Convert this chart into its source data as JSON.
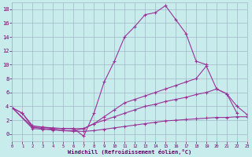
{
  "background_color": "#c8ecec",
  "line_color": "#993399",
  "grid_color": "#a0b8c8",
  "xlabel": "Windchill (Refroidissement éolien,°C)",
  "xlabel_color": "#660066",
  "tick_color": "#660066",
  "xlim": [
    0,
    23
  ],
  "ylim": [
    -1,
    19
  ],
  "xticks": [
    0,
    1,
    2,
    3,
    4,
    5,
    6,
    7,
    8,
    9,
    10,
    11,
    12,
    13,
    14,
    15,
    16,
    17,
    18,
    19,
    20,
    21,
    22,
    23
  ],
  "yticks": [
    0,
    2,
    4,
    6,
    8,
    10,
    12,
    14,
    16,
    18
  ],
  "curves": [
    {
      "x": [
        0,
        1,
        2,
        3,
        4,
        5,
        6,
        7,
        8,
        9,
        10,
        11,
        12,
        13,
        14,
        15,
        16,
        17,
        18,
        19
      ],
      "y": [
        3.8,
        3.0,
        1.0,
        1.0,
        0.8,
        0.8,
        0.8,
        -0.3,
        3.0,
        7.5,
        10.5,
        14.0,
        15.5,
        17.2,
        17.5,
        18.5,
        16.5,
        14.5,
        10.5,
        10.0
      ]
    },
    {
      "x": [
        0,
        1,
        2,
        3,
        4,
        5,
        6,
        7,
        8,
        9,
        10,
        11,
        12,
        13,
        14,
        15,
        16,
        17,
        18,
        19,
        20,
        21,
        22
      ],
      "y": [
        3.8,
        3.0,
        1.2,
        1.0,
        0.9,
        0.8,
        0.8,
        0.8,
        1.5,
        2.5,
        3.5,
        4.5,
        5.0,
        5.5,
        6.0,
        6.5,
        7.0,
        7.5,
        8.0,
        9.8,
        6.5,
        5.8,
        3.0
      ]
    },
    {
      "x": [
        0,
        2,
        3,
        4,
        5,
        6,
        7,
        8,
        9,
        10,
        11,
        12,
        13,
        14,
        15,
        16,
        17,
        18,
        19,
        20,
        21,
        22,
        23
      ],
      "y": [
        3.8,
        1.0,
        0.8,
        0.7,
        0.5,
        0.5,
        0.8,
        1.5,
        2.0,
        2.5,
        3.0,
        3.5,
        4.0,
        4.3,
        4.7,
        5.0,
        5.3,
        5.7,
        6.0,
        6.5,
        5.8,
        4.0,
        2.8
      ]
    },
    {
      "x": [
        0,
        2,
        3,
        4,
        5,
        6,
        7,
        8,
        9,
        10,
        11,
        12,
        13,
        14,
        15,
        16,
        17,
        18,
        19,
        20,
        21,
        22,
        23
      ],
      "y": [
        3.8,
        0.8,
        0.7,
        0.6,
        0.5,
        0.4,
        0.4,
        0.5,
        0.7,
        0.9,
        1.1,
        1.3,
        1.5,
        1.7,
        1.9,
        2.0,
        2.1,
        2.2,
        2.3,
        2.4,
        2.4,
        2.5,
        2.5
      ]
    }
  ]
}
